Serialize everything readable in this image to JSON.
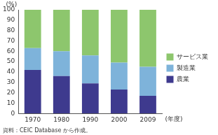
{
  "chart_data": {
    "type": "bar",
    "stacked": true,
    "grid": false,
    "legend": "right",
    "y_label": "(%)",
    "x_label": "(年度)",
    "source": "資料：CEIC Database から作成。",
    "categories": [
      "1970",
      "1980",
      "1990",
      "2000",
      "2009"
    ],
    "series": [
      {
        "name": "農業",
        "color": "#3e3a8e",
        "values": [
          42,
          36,
          29,
          23,
          17
        ]
      },
      {
        "name": "製造業",
        "color": "#7eb3da",
        "values": [
          21,
          24,
          27,
          26,
          28
        ]
      },
      {
        "name": "サービス業",
        "color": "#8dc66d",
        "values": [
          37,
          40,
          44,
          51,
          55
        ]
      }
    ],
    "ylim": [
      0,
      100
    ],
    "yticks": [
      0,
      10,
      20,
      30,
      40,
      50,
      60,
      70,
      80,
      90,
      100
    ]
  }
}
